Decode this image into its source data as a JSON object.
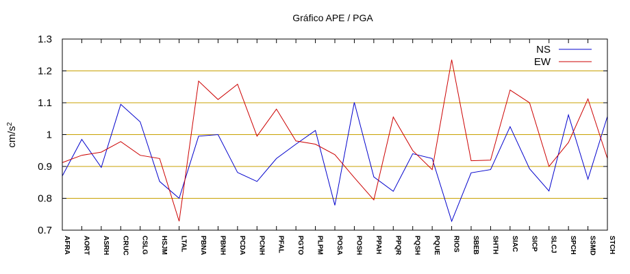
{
  "chart_data": {
    "type": "line",
    "title": "Gráfico  APE / PGA",
    "xlabel": "",
    "ylabel": "cm/s",
    "ylabel_superscript": "2",
    "ylim": [
      0.7,
      1.3
    ],
    "yticks": [
      0.7,
      0.8,
      0.9,
      1,
      1.1,
      1.2,
      1.3
    ],
    "ytick_labels": [
      "0.7",
      "0.8",
      "0.9",
      "1",
      "1.1",
      "1.2",
      "1.3"
    ],
    "grid": "horizontal",
    "legend_position": "top-right",
    "categories": [
      "AFRA",
      "AORT",
      "ASRH",
      "CRUC",
      "CSLG",
      "HSJM",
      "LTAL",
      "PBNA",
      "PBNH",
      "PCDA",
      "PCNH",
      "PFAL",
      "PGTO",
      "PLPM",
      "POSA",
      "POSH",
      "PPAH",
      "PPQR",
      "PQSH",
      "PQUE",
      "RIOS",
      "SBEB",
      "SHTH",
      "SIAC",
      "SICP",
      "SLCJ",
      "SPCH",
      "SSMD",
      "STCH"
    ],
    "series": [
      {
        "name": "NS",
        "color": "#0000cc",
        "values": [
          0.87,
          0.985,
          0.897,
          1.095,
          1.04,
          0.853,
          0.8,
          0.995,
          1.0,
          0.881,
          0.853,
          0.925,
          0.97,
          1.013,
          0.778,
          1.101,
          0.867,
          0.822,
          0.94,
          0.925,
          0.728,
          0.88,
          0.89,
          1.025,
          0.893,
          0.823,
          1.062,
          0.86,
          1.057
        ]
      },
      {
        "name": "EW",
        "color": "#cc0000",
        "values": [
          0.912,
          0.935,
          0.945,
          0.978,
          0.935,
          0.925,
          0.728,
          1.168,
          1.11,
          1.158,
          0.995,
          1.08,
          0.98,
          0.97,
          0.937,
          0.865,
          0.795,
          1.055,
          0.95,
          0.89,
          1.235,
          0.918,
          0.92,
          1.14,
          1.1,
          0.9,
          0.975,
          1.112,
          0.925
        ]
      }
    ]
  },
  "colors": {
    "grid": "#c8a000",
    "axis": "#000000"
  }
}
